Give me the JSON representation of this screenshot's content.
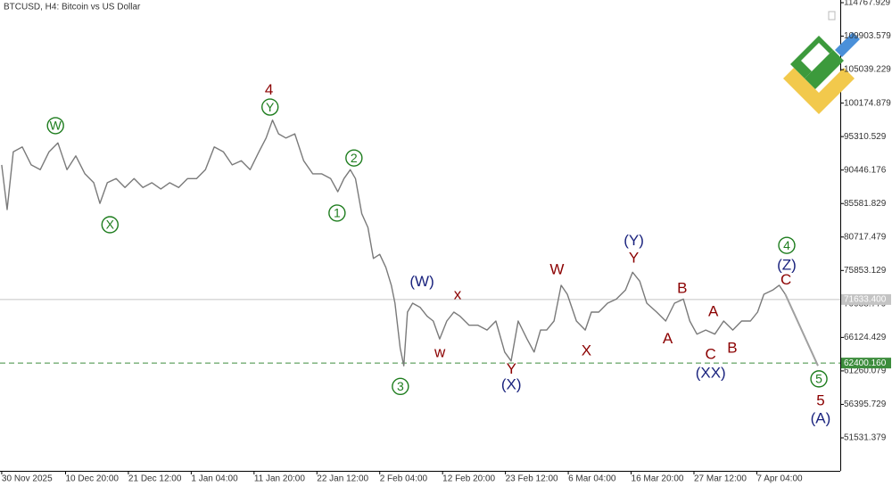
{
  "chart_data": {
    "type": "line",
    "title": "BTCUSD, H4: Bitcoin vs US Dollar",
    "xlim": [
      -7,
      3416
    ],
    "xticks": [
      {
        "value": 0,
        "label": "30 Nov 2025"
      },
      {
        "value": 260,
        "label": "10 Dec 20:00"
      },
      {
        "value": 516,
        "label": "21 Dec 12:00"
      },
      {
        "value": 772,
        "label": "1 Jan 04:00"
      },
      {
        "value": 1028,
        "label": "11 Jan 20:00"
      },
      {
        "value": 1284,
        "label": "22 Jan 12:00"
      },
      {
        "value": 1540,
        "label": "2 Feb 04:00"
      },
      {
        "value": 1796,
        "label": "12 Feb 20:00"
      },
      {
        "value": 2052,
        "label": "23 Feb 12:00"
      },
      {
        "value": 2308,
        "label": "6 Mar 04:00"
      },
      {
        "value": 2564,
        "label": "16 Mar 20:00"
      },
      {
        "value": 2820,
        "label": "27 Mar 12:00"
      },
      {
        "value": 3076,
        "label": "7 Apr 04:00"
      }
    ],
    "ylim": [
      46736,
      115157
    ],
    "yticks": [
      114767.929,
      109903.579,
      105039.229,
      100174.879,
      95310.529,
      90446.176,
      85581.829,
      80717.479,
      75853.129,
      70988.779,
      66124.429,
      61260.079,
      56395.729,
      51531.379
    ],
    "series": [
      {
        "color": "#7a7a7a",
        "x": [
          0,
          22,
          47,
          84,
          120,
          157,
          193,
          229,
          266,
          302,
          339,
          375,
          400,
          430,
          466,
          502,
          539,
          575,
          612,
          648,
          684,
          721,
          757,
          794,
          830,
          866,
          903,
          939,
          976,
          1012,
          1048,
          1077,
          1103,
          1128,
          1158,
          1194,
          1230,
          1267,
          1303,
          1340,
          1369,
          1394,
          1420,
          1441,
          1467,
          1492,
          1514,
          1540,
          1565,
          1587,
          1602,
          1623,
          1638,
          1653,
          1674,
          1704,
          1733,
          1758,
          1784,
          1813,
          1842,
          1867,
          1904,
          1940,
          1977,
          2013,
          2049,
          2075,
          2104,
          2140,
          2169,
          2195,
          2220,
          2250,
          2279,
          2304,
          2341,
          2377,
          2402,
          2432,
          2468,
          2504,
          2541,
          2570,
          2599,
          2628,
          2668,
          2705,
          2741,
          2777,
          2803,
          2832,
          2868,
          2905,
          2941,
          2978,
          3014,
          3050,
          3079,
          3105,
          3141,
          3167,
          3192
        ],
        "values": [
          91200,
          84700,
          93100,
          93800,
          91200,
          90500,
          93100,
          94400,
          90500,
          92500,
          89900,
          88600,
          85600,
          88600,
          89200,
          87900,
          89200,
          87900,
          88600,
          87700,
          88600,
          87900,
          89200,
          89200,
          90500,
          93800,
          93100,
          91200,
          91800,
          90500,
          93100,
          95100,
          97700,
          95700,
          95100,
          95700,
          91800,
          89900,
          89900,
          89200,
          87300,
          89200,
          90500,
          89200,
          84100,
          82100,
          77600,
          78200,
          76300,
          73700,
          71100,
          64600,
          62000,
          69800,
          71100,
          70500,
          69200,
          68500,
          65900,
          68500,
          69800,
          69200,
          67900,
          67900,
          67200,
          68500,
          64000,
          62700,
          68500,
          65900,
          64000,
          67200,
          67200,
          68500,
          73700,
          72400,
          68500,
          67200,
          69800,
          69800,
          71100,
          71700,
          73000,
          75600,
          74300,
          71100,
          69800,
          68500,
          71100,
          71700,
          68500,
          66600,
          67200,
          66600,
          68500,
          67200,
          68500,
          68500,
          69800,
          72400,
          73000,
          73700,
          72400
        ]
      },
      {
        "color": "#a0a0a0",
        "x": [
          3192,
          3325
        ],
        "values": [
          72400,
          62000
        ]
      }
    ],
    "levels": [
      {
        "value": 71633.4,
        "label": "71633.400",
        "color": "#c4c4c4",
        "dashed": false
      },
      {
        "value": 62400.16,
        "label": "62400.160",
        "color": "#3c8c3c",
        "dashed": true
      }
    ],
    "annotations": [
      {
        "text": "W",
        "x": 219,
        "y": 96900,
        "color": "#1e7d1e",
        "circle": true
      },
      {
        "text": "X",
        "x": 441,
        "y": 82500,
        "color": "#1e7d1e",
        "circle": true
      },
      {
        "text": "4",
        "x": 1089,
        "y": 102100,
        "color": "#8b0000",
        "circle": false
      },
      {
        "text": "Y",
        "x": 1093,
        "y": 99600,
        "color": "#1e7d1e",
        "circle": true
      },
      {
        "text": "2",
        "x": 1435,
        "y": 92200,
        "color": "#1e7d1e",
        "circle": true
      },
      {
        "text": "1",
        "x": 1366,
        "y": 84200,
        "color": "#1e7d1e",
        "circle": true
      },
      {
        "text": "3",
        "x": 1624,
        "y": 59000,
        "color": "#1e7d1e",
        "circle": true
      },
      {
        "text": "(W)",
        "x": 1712,
        "y": 74300,
        "color": "#1a237e",
        "circle": false
      },
      {
        "text": "x",
        "x": 1857,
        "y": 72400,
        "color": "#8b0000",
        "circle": false
      },
      {
        "text": "w",
        "x": 1785,
        "y": 64000,
        "color": "#8b0000",
        "circle": false
      },
      {
        "text": "Y",
        "x": 2076,
        "y": 61600,
        "color": "#8b0000",
        "circle": false
      },
      {
        "text": "(X)",
        "x": 2076,
        "y": 59300,
        "color": "#1a237e",
        "circle": false
      },
      {
        "text": "W",
        "x": 2262,
        "y": 76000,
        "color": "#8b0000",
        "circle": false
      },
      {
        "text": "X",
        "x": 2382,
        "y": 64200,
        "color": "#8b0000",
        "circle": false
      },
      {
        "text": "(Y)",
        "x": 2575,
        "y": 80200,
        "color": "#1a237e",
        "circle": false
      },
      {
        "text": "Y",
        "x": 2575,
        "y": 77700,
        "color": "#8b0000",
        "circle": false
      },
      {
        "text": "B",
        "x": 2772,
        "y": 73300,
        "color": "#8b0000",
        "circle": false
      },
      {
        "text": "A",
        "x": 2713,
        "y": 66000,
        "color": "#8b0000",
        "circle": false
      },
      {
        "text": "A",
        "x": 2899,
        "y": 69900,
        "color": "#8b0000",
        "circle": false
      },
      {
        "text": "C",
        "x": 2888,
        "y": 63700,
        "color": "#8b0000",
        "circle": false
      },
      {
        "text": "(XX)",
        "x": 2888,
        "y": 61000,
        "color": "#1a237e",
        "circle": false
      },
      {
        "text": "B",
        "x": 2976,
        "y": 64600,
        "color": "#8b0000",
        "circle": false
      },
      {
        "text": "4",
        "x": 3198,
        "y": 79500,
        "color": "#1e7d1e",
        "circle": true
      },
      {
        "text": "(Z)",
        "x": 3198,
        "y": 76700,
        "color": "#1a237e",
        "circle": false
      },
      {
        "text": "C",
        "x": 3195,
        "y": 74500,
        "color": "#8b0000",
        "circle": false
      },
      {
        "text": "5",
        "x": 3329,
        "y": 60100,
        "color": "#1e7d1e",
        "circle": true
      },
      {
        "text": "5",
        "x": 3336,
        "y": 57000,
        "color": "#8b0000",
        "circle": false
      },
      {
        "text": "(A)",
        "x": 3336,
        "y": 54400,
        "color": "#1a237e",
        "circle": false
      }
    ]
  }
}
